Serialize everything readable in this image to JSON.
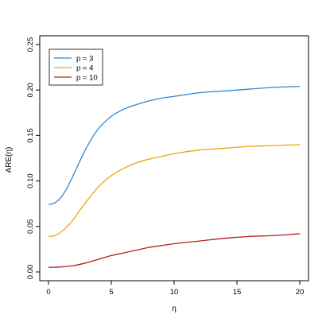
{
  "chart_data": {
    "type": "line",
    "xlabel": "η",
    "ylabel": "ARE(η)",
    "xlim": [
      0,
      20
    ],
    "ylim": [
      0,
      0.25
    ],
    "x_ticks": [
      "0",
      "5",
      "10",
      "15",
      "20"
    ],
    "y_ticks": [
      "0.00",
      "0.05",
      "0.10",
      "0.15",
      "0.20",
      "0.25"
    ],
    "grid": false,
    "legend_position": "top-left",
    "series": [
      {
        "name": "p = 3",
        "color": "#2b86d6",
        "points": [
          [
            0,
            0.074
          ],
          [
            0.5,
            0.076
          ],
          [
            1,
            0.082
          ],
          [
            1.5,
            0.093
          ],
          [
            2,
            0.107
          ],
          [
            2.5,
            0.122
          ],
          [
            3,
            0.136
          ],
          [
            3.5,
            0.148
          ],
          [
            4,
            0.158
          ],
          [
            5,
            0.171
          ],
          [
            6,
            0.179
          ],
          [
            7,
            0.184
          ],
          [
            8,
            0.188
          ],
          [
            9,
            0.191
          ],
          [
            10,
            0.193
          ],
          [
            12,
            0.197
          ],
          [
            14,
            0.199
          ],
          [
            16,
            0.201
          ],
          [
            18,
            0.203
          ],
          [
            20,
            0.204
          ]
        ]
      },
      {
        "name": "p = 4",
        "color": "#f0a30a",
        "points": [
          [
            0,
            0.039
          ],
          [
            0.5,
            0.04
          ],
          [
            1,
            0.044
          ],
          [
            1.5,
            0.05
          ],
          [
            2,
            0.058
          ],
          [
            2.5,
            0.068
          ],
          [
            3,
            0.077
          ],
          [
            3.5,
            0.086
          ],
          [
            4,
            0.094
          ],
          [
            5,
            0.106
          ],
          [
            6,
            0.114
          ],
          [
            7,
            0.12
          ],
          [
            8,
            0.124
          ],
          [
            9,
            0.127
          ],
          [
            10,
            0.13
          ],
          [
            12,
            0.134
          ],
          [
            14,
            0.136
          ],
          [
            16,
            0.138
          ],
          [
            18,
            0.139
          ],
          [
            20,
            0.14
          ]
        ]
      },
      {
        "name": "p = 10",
        "color": "#b22222",
        "points": [
          [
            0,
            0.005
          ],
          [
            1,
            0.0055
          ],
          [
            2,
            0.007
          ],
          [
            3,
            0.01
          ],
          [
            4,
            0.014
          ],
          [
            5,
            0.018
          ],
          [
            6,
            0.021
          ],
          [
            7,
            0.024
          ],
          [
            8,
            0.027
          ],
          [
            9,
            0.029
          ],
          [
            10,
            0.031
          ],
          [
            12,
            0.034
          ],
          [
            14,
            0.037
          ],
          [
            16,
            0.039
          ],
          [
            18,
            0.04
          ],
          [
            20,
            0.042
          ]
        ]
      }
    ]
  }
}
